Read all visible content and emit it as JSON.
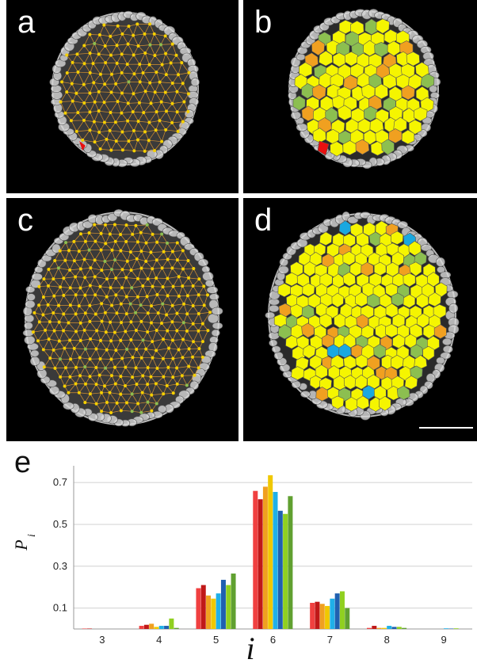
{
  "panels": [
    {
      "id": "a",
      "label": "a",
      "style": "triangulation"
    },
    {
      "id": "b",
      "label": "b",
      "style": "voronoi"
    },
    {
      "id": "c",
      "label": "c",
      "style": "triangulation"
    },
    {
      "id": "d",
      "label": "d",
      "style": "voronoi"
    }
  ],
  "colors": {
    "yellow": "#f5f500",
    "orange": "#f0a020",
    "green": "#8cbf50",
    "red": "#e81010",
    "blue": "#1aa8e0",
    "edge": "#f0a030",
    "node": "#f5d000"
  },
  "chart_data": {
    "type": "bar",
    "panel_label": "e",
    "ylabel": "P",
    "ylabel_sub": "i",
    "xlabel": "i",
    "categories": [
      "3",
      "4",
      "5",
      "6",
      "7",
      "8",
      "9"
    ],
    "yticks": [
      "0.1",
      "0.3",
      "0.5",
      "0.7"
    ],
    "ylim": [
      0,
      0.78
    ],
    "grid": true,
    "series_colors": [
      "#f04040",
      "#c01818",
      "#f0a020",
      "#f0c800",
      "#20b0e8",
      "#2060b0",
      "#90d020",
      "#60a030"
    ],
    "series": [
      {
        "values": [
          0.002,
          0.015,
          0.195,
          0.66,
          0.125,
          0.005,
          0.0
        ]
      },
      {
        "values": [
          0.002,
          0.02,
          0.21,
          0.62,
          0.13,
          0.015,
          0.0
        ]
      },
      {
        "values": [
          0.0,
          0.025,
          0.16,
          0.68,
          0.12,
          0.005,
          0.0
        ]
      },
      {
        "values": [
          0.0,
          0.01,
          0.145,
          0.735,
          0.11,
          0.005,
          0.0
        ]
      },
      {
        "values": [
          0.0,
          0.015,
          0.17,
          0.655,
          0.145,
          0.015,
          0.003
        ]
      },
      {
        "values": [
          0.0,
          0.015,
          0.235,
          0.565,
          0.17,
          0.01,
          0.002
        ]
      },
      {
        "values": [
          0.0,
          0.05,
          0.21,
          0.55,
          0.18,
          0.01,
          0.003
        ]
      },
      {
        "values": [
          0.0,
          0.005,
          0.265,
          0.635,
          0.1,
          0.005,
          0.0
        ]
      }
    ]
  }
}
